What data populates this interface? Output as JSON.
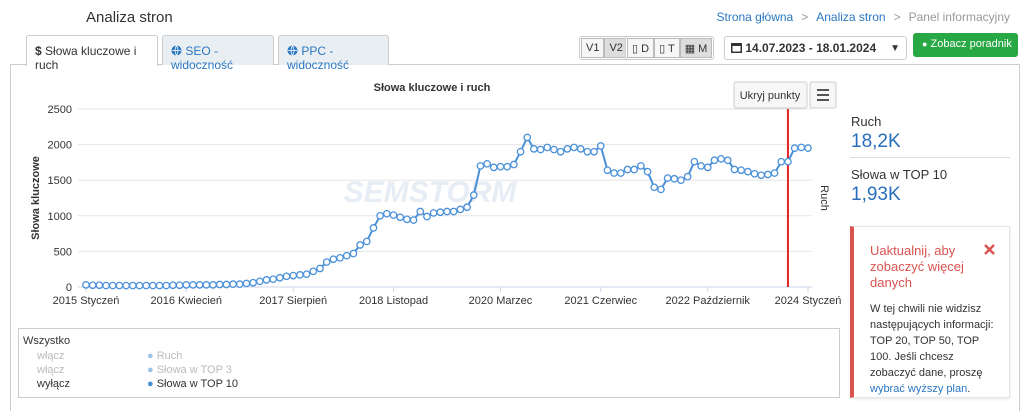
{
  "header": {
    "title": "Analiza stron",
    "breadcrumbs": [
      "Strona główna",
      "Analiza stron",
      "Panel informacyjny"
    ],
    "separator": ">"
  },
  "tabs": [
    {
      "icon": "$",
      "label": "Słowa kluczowe i ruch"
    },
    {
      "label": "SEO - widoczność"
    },
    {
      "label": "PPC - widoczność"
    }
  ],
  "controls": {
    "versions": [
      "V1",
      "V2"
    ],
    "periods": [
      "D",
      "T",
      "M"
    ],
    "date_range": "14.07.2023 - 18.01.2024",
    "guide_button": "Zobacz poradnik"
  },
  "chart_data": {
    "type": "line",
    "title": "Słowa kluczowe i ruch",
    "watermark": "SEMSTORM",
    "y_label": "Słowa kluczowe",
    "y2_label": "Ruch",
    "button": "Ukryj punkty",
    "x": [
      "2015-01",
      "2015-02",
      "2015-03",
      "2015-04",
      "2015-05",
      "2015-06",
      "2015-07",
      "2015-08",
      "2015-09",
      "2015-10",
      "2015-11",
      "2015-12",
      "2016-01",
      "2016-02",
      "2016-03",
      "2016-04",
      "2016-05",
      "2016-06",
      "2016-07",
      "2016-08",
      "2016-09",
      "2016-10",
      "2016-11",
      "2016-12",
      "2017-01",
      "2017-02",
      "2017-03",
      "2017-04",
      "2017-05",
      "2017-06",
      "2017-07",
      "2017-08",
      "2017-09",
      "2017-10",
      "2017-11",
      "2017-12",
      "2018-01",
      "2018-02",
      "2018-03",
      "2018-04",
      "2018-05",
      "2018-06",
      "2018-07",
      "2018-08",
      "2018-09",
      "2018-10",
      "2018-11",
      "2018-12",
      "2019-01",
      "2019-02",
      "2019-03",
      "2019-04",
      "2019-05",
      "2019-06",
      "2019-07",
      "2019-08",
      "2019-09",
      "2019-10",
      "2019-11",
      "2019-12",
      "2020-01",
      "2020-02",
      "2020-03",
      "2020-04",
      "2020-05",
      "2020-06",
      "2020-07",
      "2020-08",
      "2020-09",
      "2020-10",
      "2020-11",
      "2020-12",
      "2021-01",
      "2021-02",
      "2021-03",
      "2021-04",
      "2021-05",
      "2021-06",
      "2021-07",
      "2021-08",
      "2021-09",
      "2021-10",
      "2021-11",
      "2021-12",
      "2022-01",
      "2022-02",
      "2022-03",
      "2022-04",
      "2022-05",
      "2022-06",
      "2022-07",
      "2022-08",
      "2022-09",
      "2022-10",
      "2022-11",
      "2022-12",
      "2023-01",
      "2023-02",
      "2023-03",
      "2023-04",
      "2023-05",
      "2023-06",
      "2023-07",
      "2023-08",
      "2023-09",
      "2023-10",
      "2023-11",
      "2023-12",
      "2024-01"
    ],
    "series": [
      {
        "name": "Słowa w TOP 10",
        "color": "#4a90d9",
        "values": [
          30,
          25,
          25,
          20,
          20,
          20,
          20,
          20,
          20,
          20,
          20,
          20,
          20,
          25,
          25,
          30,
          30,
          30,
          30,
          30,
          35,
          35,
          40,
          40,
          50,
          60,
          80,
          100,
          110,
          130,
          150,
          160,
          170,
          180,
          220,
          260,
          350,
          390,
          410,
          440,
          470,
          590,
          640,
          830,
          1000,
          1030,
          1010,
          980,
          950,
          940,
          1060,
          990,
          1040,
          1050,
          1060,
          1060,
          1090,
          1120,
          1290,
          1700,
          1730,
          1680,
          1690,
          1690,
          1720,
          1900,
          2100,
          1940,
          1930,
          1960,
          1930,
          1900,
          1940,
          1960,
          1940,
          1900,
          1900,
          1980,
          1640,
          1600,
          1600,
          1650,
          1650,
          1700,
          1620,
          1400,
          1370,
          1530,
          1520,
          1500,
          1550,
          1760,
          1700,
          1680,
          1780,
          1800,
          1780,
          1650,
          1640,
          1620,
          1590,
          1570,
          1580,
          1600,
          1760,
          1760,
          1950,
          1960,
          1950
        ]
      }
    ],
    "ylim": [
      0,
      2500
    ],
    "yticks": [
      0,
      500,
      1000,
      1500,
      2000,
      2500
    ],
    "xticks": [
      {
        "value": "2015-01",
        "label": "2015 Styczeń"
      },
      {
        "value": "2016-04",
        "label": "2016 Kwiecień"
      },
      {
        "value": "2017-08",
        "label": "2017 Sierpień"
      },
      {
        "value": "2018-11",
        "label": "2018 Listopad"
      },
      {
        "value": "2020-03",
        "label": "2020 Marzec"
      },
      {
        "value": "2021-06",
        "label": "2021 Czerwiec"
      },
      {
        "value": "2022-10",
        "label": "2022 Październik"
      },
      {
        "value": "2024-01",
        "label": "2024 Styczeń"
      }
    ],
    "plot_line_x": "2023-10",
    "plot_line_color": "#e02424",
    "grid": true
  },
  "legend": {
    "title": "Wszystko",
    "items": [
      {
        "toggle": "włącz",
        "name": "Ruch"
      },
      {
        "toggle": "włącz",
        "name": "Słowa w TOP 3"
      },
      {
        "toggle": "wyłącz"
      }
    ]
  },
  "stats": [
    {
      "label": "Ruch",
      "value": "18,2K"
    },
    {
      "label": "Słowa w TOP 10",
      "value": "1,93K"
    }
  ],
  "alert": {
    "title": "Uaktualnij, aby zobaczyć więcej danych",
    "text_before": "W tej chwili nie widzisz następujących informacji: TOP 20, TOP 50, TOP 100. Jeśli chcesz zobaczyć dane, proszę ",
    "link": "wybrać wyższy plan",
    "text_after": "."
  }
}
